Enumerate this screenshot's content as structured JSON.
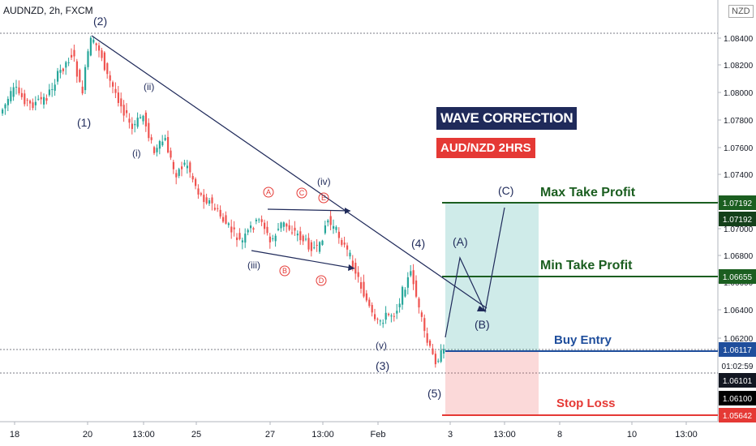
{
  "header": {
    "symbol_label": "AUDNZD, 2h, FXCM",
    "currency_button": "NZD"
  },
  "labels": {
    "wave_title": "WAVE CORRECTION",
    "pair_title": "AUD/NZD   2HRS",
    "max_tp": "Max Take Profit",
    "min_tp": "Min Take Profit",
    "buy_entry": "Buy Entry",
    "stop_loss": "Stop Loss"
  },
  "waves": {
    "w1": "(1)",
    "w2": "(2)",
    "w3": "(3)",
    "w4": "(4)",
    "w5": "(5)",
    "wi": "(i)",
    "wii": "(ii)",
    "wiii": "(iii)",
    "wiv": "(iv)",
    "wv": "(v)",
    "A": "(A)",
    "B": "(B)",
    "C": "(C)",
    "ca": "A",
    "cb": "B",
    "cc": "C",
    "cd": "D",
    "ce": "E"
  },
  "colors": {
    "up": "#26a69a",
    "down": "#ef5350",
    "navy": "#1f2a5a",
    "green": "#1b5e20",
    "red": "#e53935",
    "blue": "#1f4e9c"
  },
  "chart_data": {
    "type": "candlestick",
    "y_axis": {
      "range": [
        1.0555,
        1.0865
      ],
      "ticks": [
        "1.08400",
        "1.08200",
        "1.08000",
        "1.07800",
        "1.07600",
        "1.07400",
        "1.07200",
        "1.07000",
        "1.06800",
        "1.06600",
        "1.06400",
        "1.06200"
      ]
    },
    "x_axis": {
      "ticks": [
        "18",
        "20",
        "13:00",
        "25",
        "27",
        "13:00",
        "Feb",
        "3",
        "13:00",
        "8",
        "10",
        "13:00"
      ]
    },
    "price_tags": [
      {
        "value": "1.07192",
        "style": "green"
      },
      {
        "value": "1.07192",
        "style": "green-dark"
      },
      {
        "value": "1.06655",
        "style": "green"
      },
      {
        "value": "1.06117",
        "style": "blue"
      },
      {
        "value": "01:02:59",
        "style": "timer"
      },
      {
        "value": "1.06101",
        "style": "dark"
      },
      {
        "value": "1.06100",
        "style": "black"
      },
      {
        "value": "1.05642",
        "style": "red"
      }
    ],
    "levels": {
      "max_take_profit": 1.07192,
      "min_take_profit": 1.06655,
      "buy_entry": 1.06117,
      "stop_loss": 1.05642,
      "high_line": 1.0845,
      "last_line": 1.0596
    }
  }
}
